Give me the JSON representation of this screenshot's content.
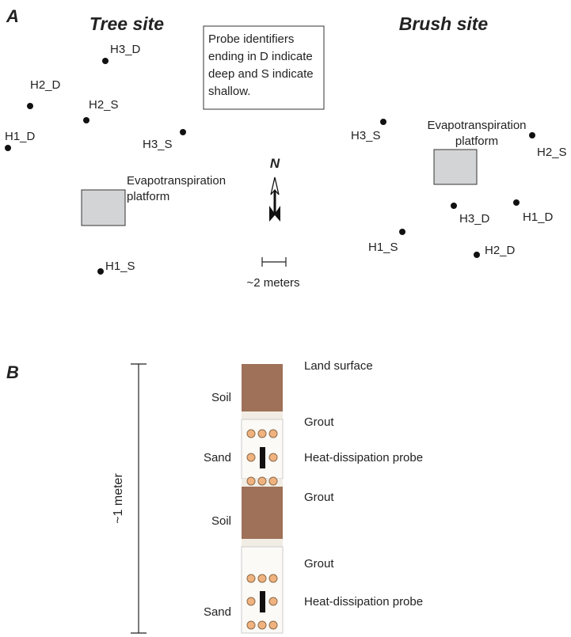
{
  "panel_a": {
    "label": "A",
    "tree_site": {
      "title": "Tree site",
      "probes": [
        "H3_D",
        "H2_D",
        "H2_S",
        "H1_D",
        "H3_S",
        "H1_S"
      ],
      "platform": [
        "Evapotranspiration",
        "platform"
      ]
    },
    "note": [
      "Probe identifiers",
      "ending in D indicate",
      "deep and S indicate",
      "shallow."
    ],
    "north": "N",
    "scale": "~2 meters",
    "brush_site": {
      "title": "Brush site",
      "probes": [
        "H3_S",
        "H2_S",
        "H3_D",
        "H1_D",
        "H1_S",
        "H2_D"
      ],
      "platform": [
        "Evapotranspiration",
        "platform"
      ]
    }
  },
  "panel_b": {
    "label": "B",
    "scale": "~1 meter",
    "layers": [
      "Soil",
      "Sand",
      "Soil",
      "Sand"
    ],
    "annotations": [
      "Land surface",
      "Grout",
      "Heat-dissipation probe",
      "Grout",
      "Grout",
      "Heat-dissipation probe"
    ]
  }
}
